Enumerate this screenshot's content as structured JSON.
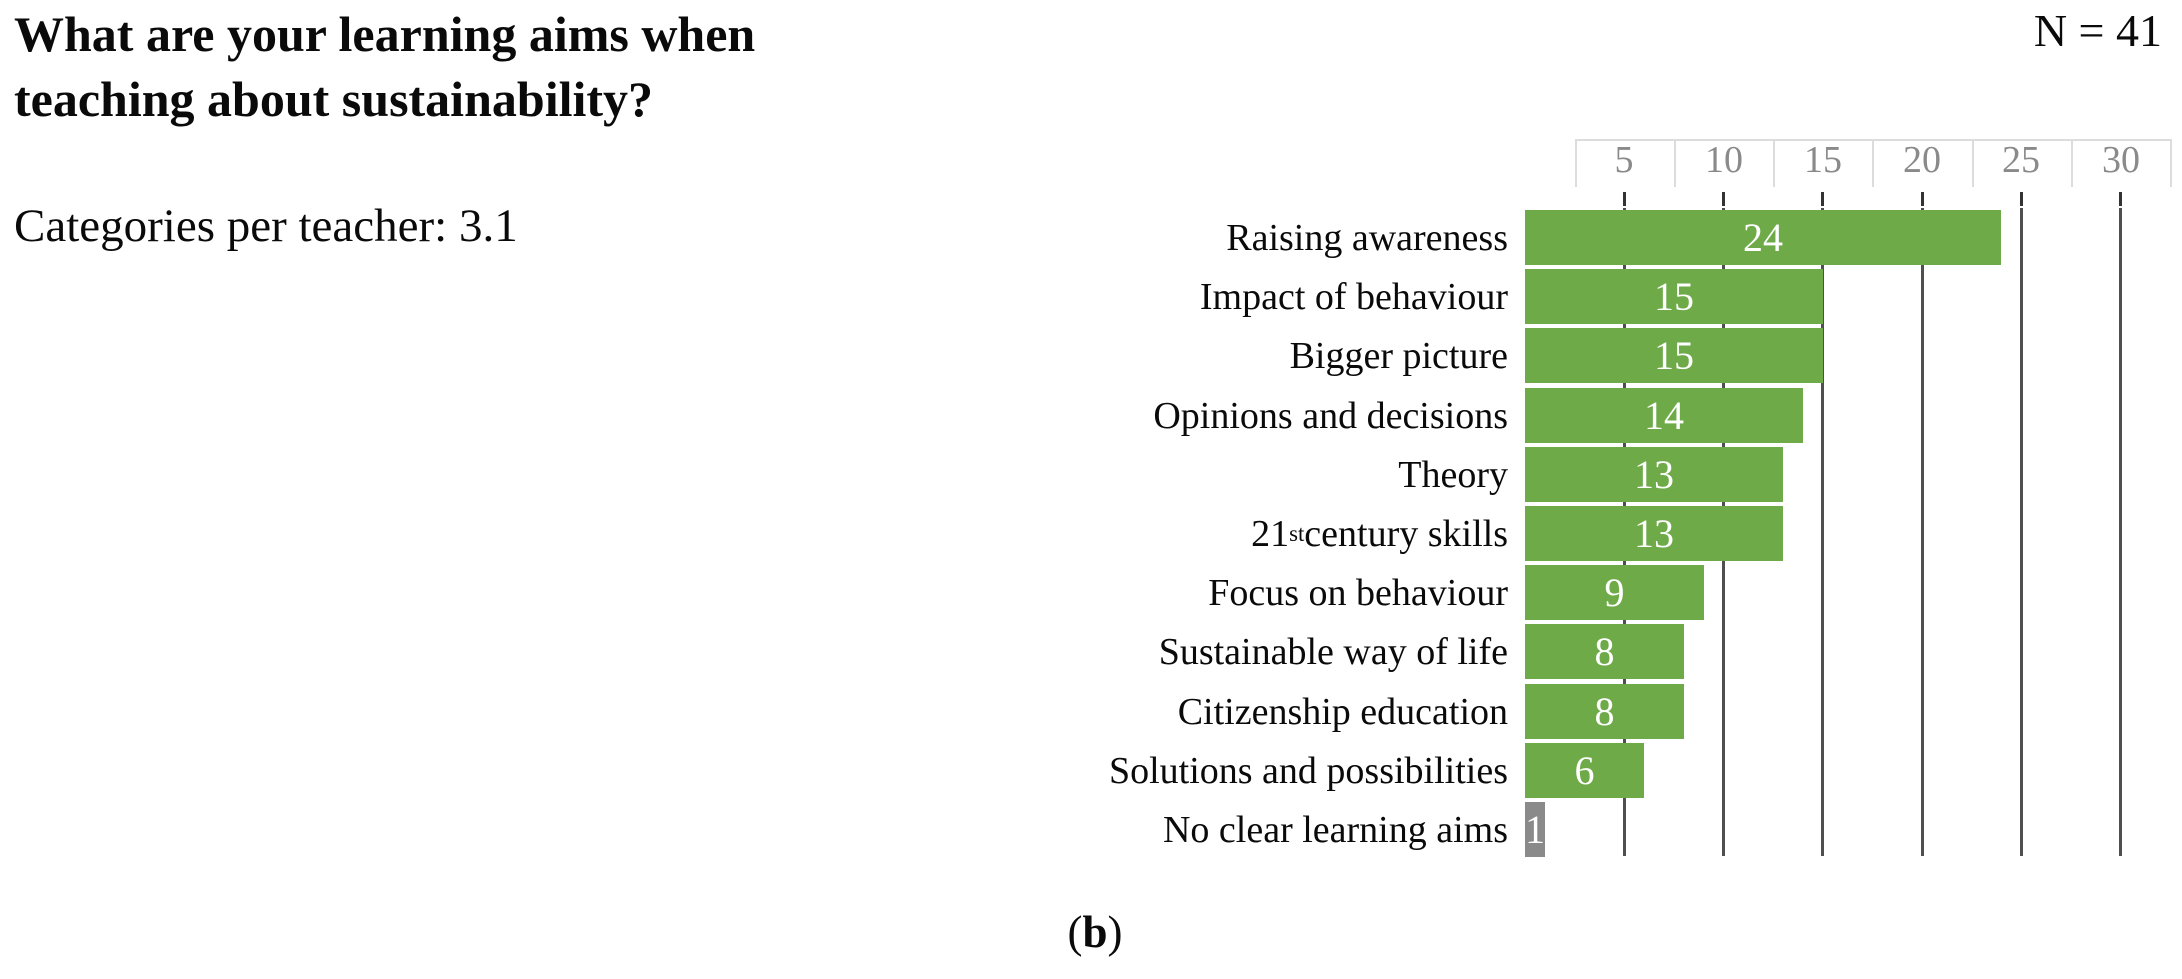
{
  "header": {
    "title_line1": "What are your learning aims when",
    "title_line2": "teaching about sustainability?",
    "subtitle": "Categories per teacher: 3.1",
    "sample_size": "N = 41"
  },
  "figure_label": {
    "open": "(",
    "letter": "b",
    "close": ")"
  },
  "chart_data": {
    "type": "bar",
    "orientation": "horizontal",
    "title": "What are your learning aims when teaching about sustainability?",
    "subtitle": "Categories per teacher: 3.1",
    "sample_size": 41,
    "categories_per_teacher": 3.1,
    "categories": [
      "Raising awareness",
      "Impact of behaviour",
      "Bigger picture",
      "Opinions and decisions",
      "Theory",
      "21st century skills",
      "Focus on behaviour",
      "Sustainable way of life",
      "Citizenship education",
      "Solutions and possibilities",
      "No clear learning aims"
    ],
    "category_rich_text": {
      "5": {
        "base": "21",
        "sup": "st",
        "rest": " century skills"
      }
    },
    "values": [
      24,
      15,
      15,
      14,
      13,
      13,
      9,
      8,
      8,
      6,
      1
    ],
    "bar_colors": [
      "#6faa49",
      "#6faa49",
      "#6faa49",
      "#6faa49",
      "#6faa49",
      "#6faa49",
      "#6faa49",
      "#6faa49",
      "#6faa49",
      "#6faa49",
      "#8a8a8a"
    ],
    "value_label_color": "#ffffff",
    "x_ticks": [
      5,
      10,
      15,
      20,
      25,
      30
    ],
    "xlim": [
      0,
      32.5
    ],
    "grid": "vertical",
    "gridline_color": "#4f4f4f",
    "tick_mark_color": "#333333",
    "tick_label_color": "#8a8a8a",
    "header_rule_color": "#dcdcdc",
    "legend": "none",
    "axis_position": "top"
  }
}
